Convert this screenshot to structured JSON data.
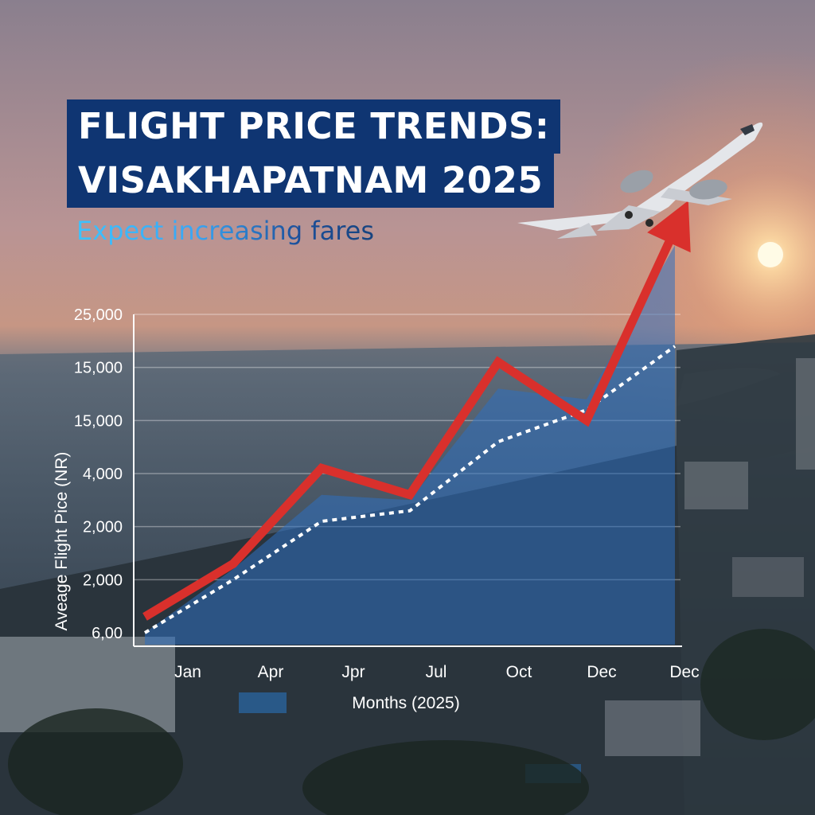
{
  "title_line1": "FLIGHT PRICE TRENDS:",
  "title_line2": "VISAKHAPATNAM 2025",
  "subtitle": "Expect increasing fares",
  "colors": {
    "title_bg": "#0f3572",
    "subtitle": "#3aa6f4",
    "primary_line": "#d9302c",
    "dotted_line": "#ffffff",
    "area_fill": "#2d6fc0"
  },
  "chart_data": {
    "type": "line",
    "title": "",
    "xlabel": "Months (2025)",
    "ylabel": "Aveage Flight Pice (NR)",
    "x_ticks": [
      "Jan",
      "Apr",
      "Jpr",
      "Jul",
      "Oct",
      "Dec",
      "Dec"
    ],
    "y_ticks": [
      "6,00",
      "2,000",
      "2,000",
      "4,000",
      "15,000",
      "15,000",
      "25,000"
    ],
    "grid": true,
    "ylim_level": [
      0,
      7
    ],
    "series": [
      {
        "style": "solid-red-arrow",
        "values": [
          0.3,
          1.3,
          3.1,
          2.6,
          5.1,
          4.0,
          7.6
        ]
      },
      {
        "style": "dotted-white",
        "values": [
          0.0,
          1.0,
          2.1,
          2.3,
          3.6,
          4.2,
          5.4
        ]
      },
      {
        "style": "area-blue",
        "values": [
          0.0,
          1.2,
          2.6,
          2.5,
          4.6,
          4.4,
          7.3
        ]
      }
    ],
    "y_tick_level": 1,
    "x_tick_level": 1
  }
}
